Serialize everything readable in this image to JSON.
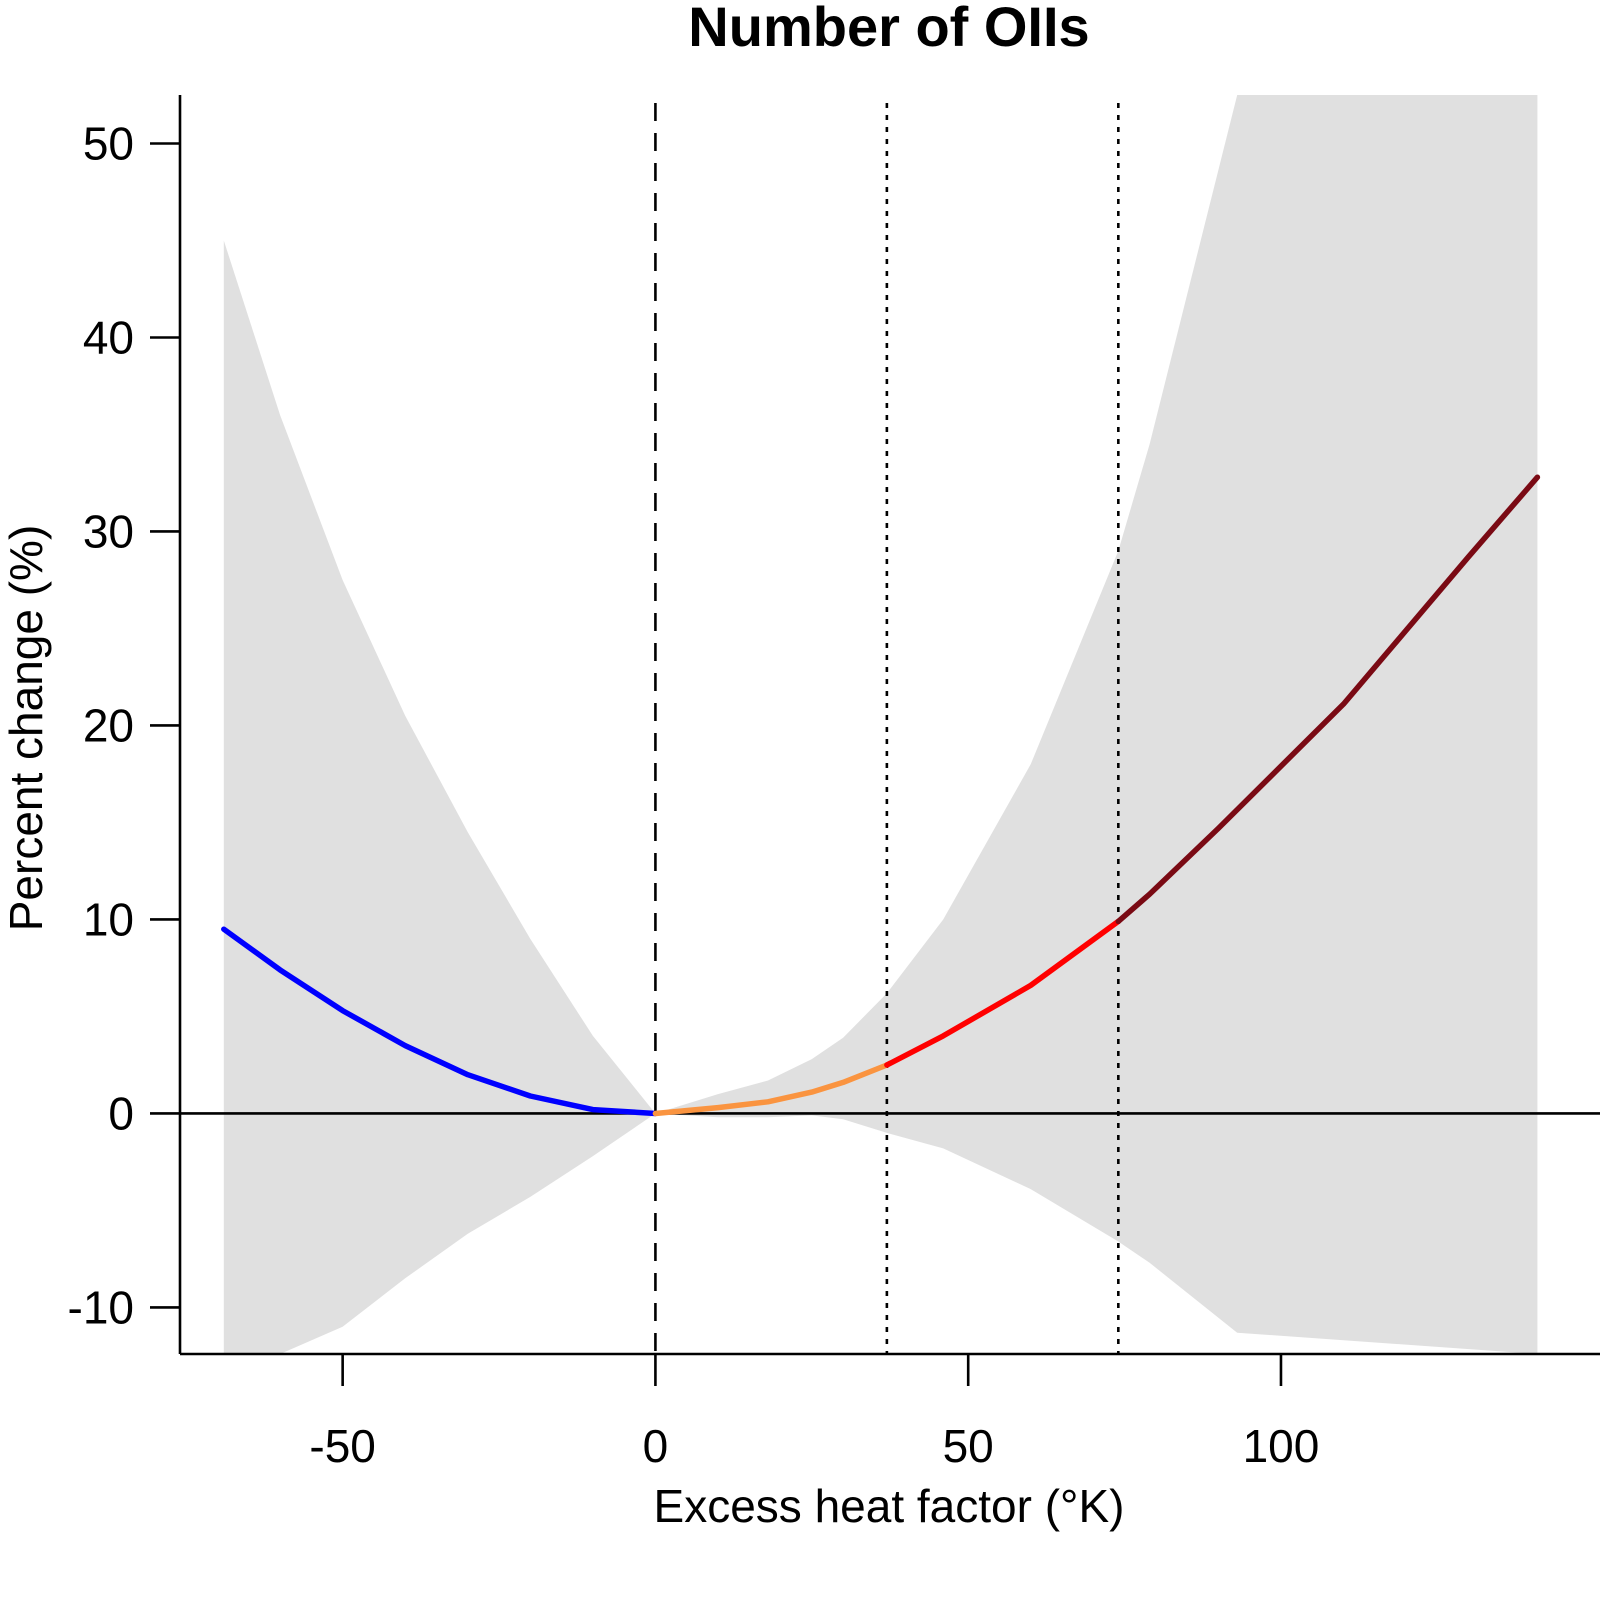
{
  "chart_data": {
    "type": "line",
    "title": "Number of OIIs",
    "xlabel": "Excess heat factor (°K)",
    "ylabel": "Percent change (%)",
    "xlim": [
      -76,
      151
    ],
    "ylim": [
      -12.4,
      52.5
    ],
    "x_ticks": [
      -50,
      0,
      50,
      100
    ],
    "y_ticks": [
      -10,
      0,
      10,
      20,
      30,
      40,
      50
    ],
    "reference_lines": [
      {
        "x": 0,
        "style": "dashed"
      },
      {
        "x": 37,
        "style": "dotted"
      },
      {
        "x": 74,
        "style": "dotted"
      },
      {
        "y": 0,
        "style": "solid"
      }
    ],
    "confidence_band": {
      "color": "#e0e0e0",
      "x": [
        -69,
        -60,
        -50,
        -40,
        -30,
        -20,
        -10,
        0,
        10,
        18,
        25,
        30,
        37,
        46,
        60,
        74,
        79,
        93,
        141
      ],
      "upper": [
        45,
        36,
        27.5,
        20.5,
        14.5,
        9,
        4,
        0,
        1,
        1.7,
        2.8,
        3.9,
        6.2,
        10,
        18,
        29,
        34.5,
        52.5,
        52.5
      ],
      "lower": [
        -12.4,
        -12.4,
        -11,
        -8.5,
        -6.2,
        -4.3,
        -2.2,
        0,
        -0.2,
        -0.2,
        -0.1,
        -0.3,
        -1,
        -1.8,
        -3.9,
        -6.6,
        -7.7,
        -11.3,
        -12.4
      ]
    },
    "grid": false,
    "legend": "none",
    "series": [
      {
        "color": "#0000ff",
        "x": [
          -69,
          -60,
          -50,
          -40,
          -30,
          -20,
          -10,
          0
        ],
        "y": [
          9.5,
          7.4,
          5.3,
          3.5,
          2.0,
          0.9,
          0.2,
          0
        ]
      },
      {
        "color": "#fa9440",
        "x": [
          0,
          10,
          18,
          25,
          30,
          37
        ],
        "y": [
          0,
          0.3,
          0.6,
          1.1,
          1.6,
          2.5
        ]
      },
      {
        "color": "#ff0000",
        "x": [
          37,
          46,
          60,
          74
        ],
        "y": [
          2.5,
          4.0,
          6.6,
          9.9
        ]
      },
      {
        "color": "#7a0a14",
        "x": [
          74,
          79,
          90,
          110,
          130,
          141
        ],
        "y": [
          9.9,
          11.3,
          14.7,
          21.1,
          28.7,
          32.8
        ]
      }
    ]
  }
}
